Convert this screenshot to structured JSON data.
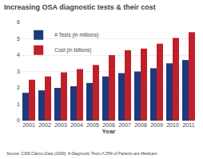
{
  "chart_data": {
    "type": "bar",
    "title": "Increasing OSA diagnostic tests & their cost",
    "xlabel": "Year",
    "categories": [
      "2001",
      "2002",
      "2003",
      "2004",
      "2005",
      "2006",
      "2007",
      "2008",
      "2009",
      "2010",
      "2011"
    ],
    "series": [
      {
        "name": "# Tests (in millions)",
        "color": "#1f3a7a",
        "values": [
          1.7,
          1.85,
          2.0,
          2.1,
          2.3,
          2.7,
          2.9,
          3.0,
          3.2,
          3.5,
          3.7
        ]
      },
      {
        "name": "Cost (in billions)",
        "color": "#c0202a",
        "values": [
          2.5,
          2.7,
          2.95,
          3.15,
          3.4,
          4.0,
          4.3,
          4.4,
          4.7,
          5.05,
          5.4
        ]
      }
    ],
    "ylim": [
      0,
      6
    ],
    "yticks": [
      0,
      1,
      2,
      3,
      4,
      5,
      6
    ],
    "grid": true,
    "legend": "upper left",
    "annotations": [
      "Source: CMS Claims Data (2009); # Diagnostic Tests if 25% of Patients are Medicare"
    ]
  }
}
